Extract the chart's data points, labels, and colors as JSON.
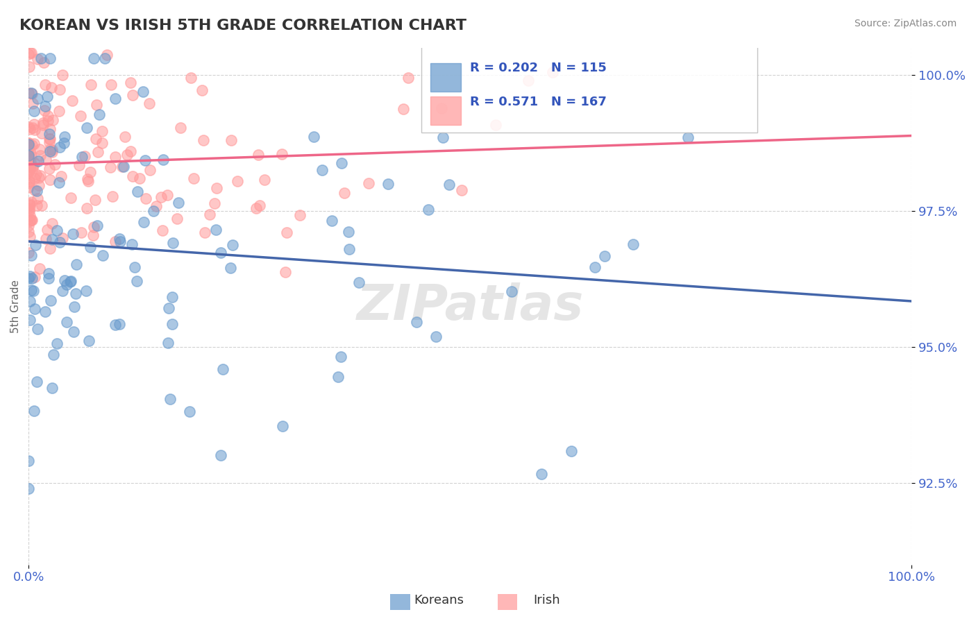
{
  "title": "KOREAN VS IRISH 5TH GRADE CORRELATION CHART",
  "source_text": "Source: ZipAtlas.com",
  "xlabel": "",
  "ylabel": "5th Grade",
  "xmin": 0.0,
  "xmax": 1.0,
  "ymin": 91.0,
  "ymax": 100.5,
  "yticks": [
    92.5,
    95.0,
    97.5,
    100.0
  ],
  "ytick_labels": [
    "92.5%",
    "95.0%",
    "97.5%",
    "100.0%"
  ],
  "xticks": [
    0.0,
    1.0
  ],
  "xtick_labels": [
    "0.0%",
    "100.0%"
  ],
  "korean_color": "#6699cc",
  "irish_color": "#ff9999",
  "trend_korean_color": "#4466aa",
  "trend_irish_color": "#ee6688",
  "korean_R": 0.202,
  "korean_N": 115,
  "irish_R": 0.571,
  "irish_N": 167,
  "legend_R_N_color": "#3355bb",
  "background_color": "#ffffff",
  "grid_color": "#cccccc",
  "watermark_color": "#cccccc",
  "axis_label_color": "#4466cc",
  "title_color": "#333333",
  "title_fontsize": 16,
  "axis_tick_fontsize": 13,
  "ylabel_fontsize": 11
}
